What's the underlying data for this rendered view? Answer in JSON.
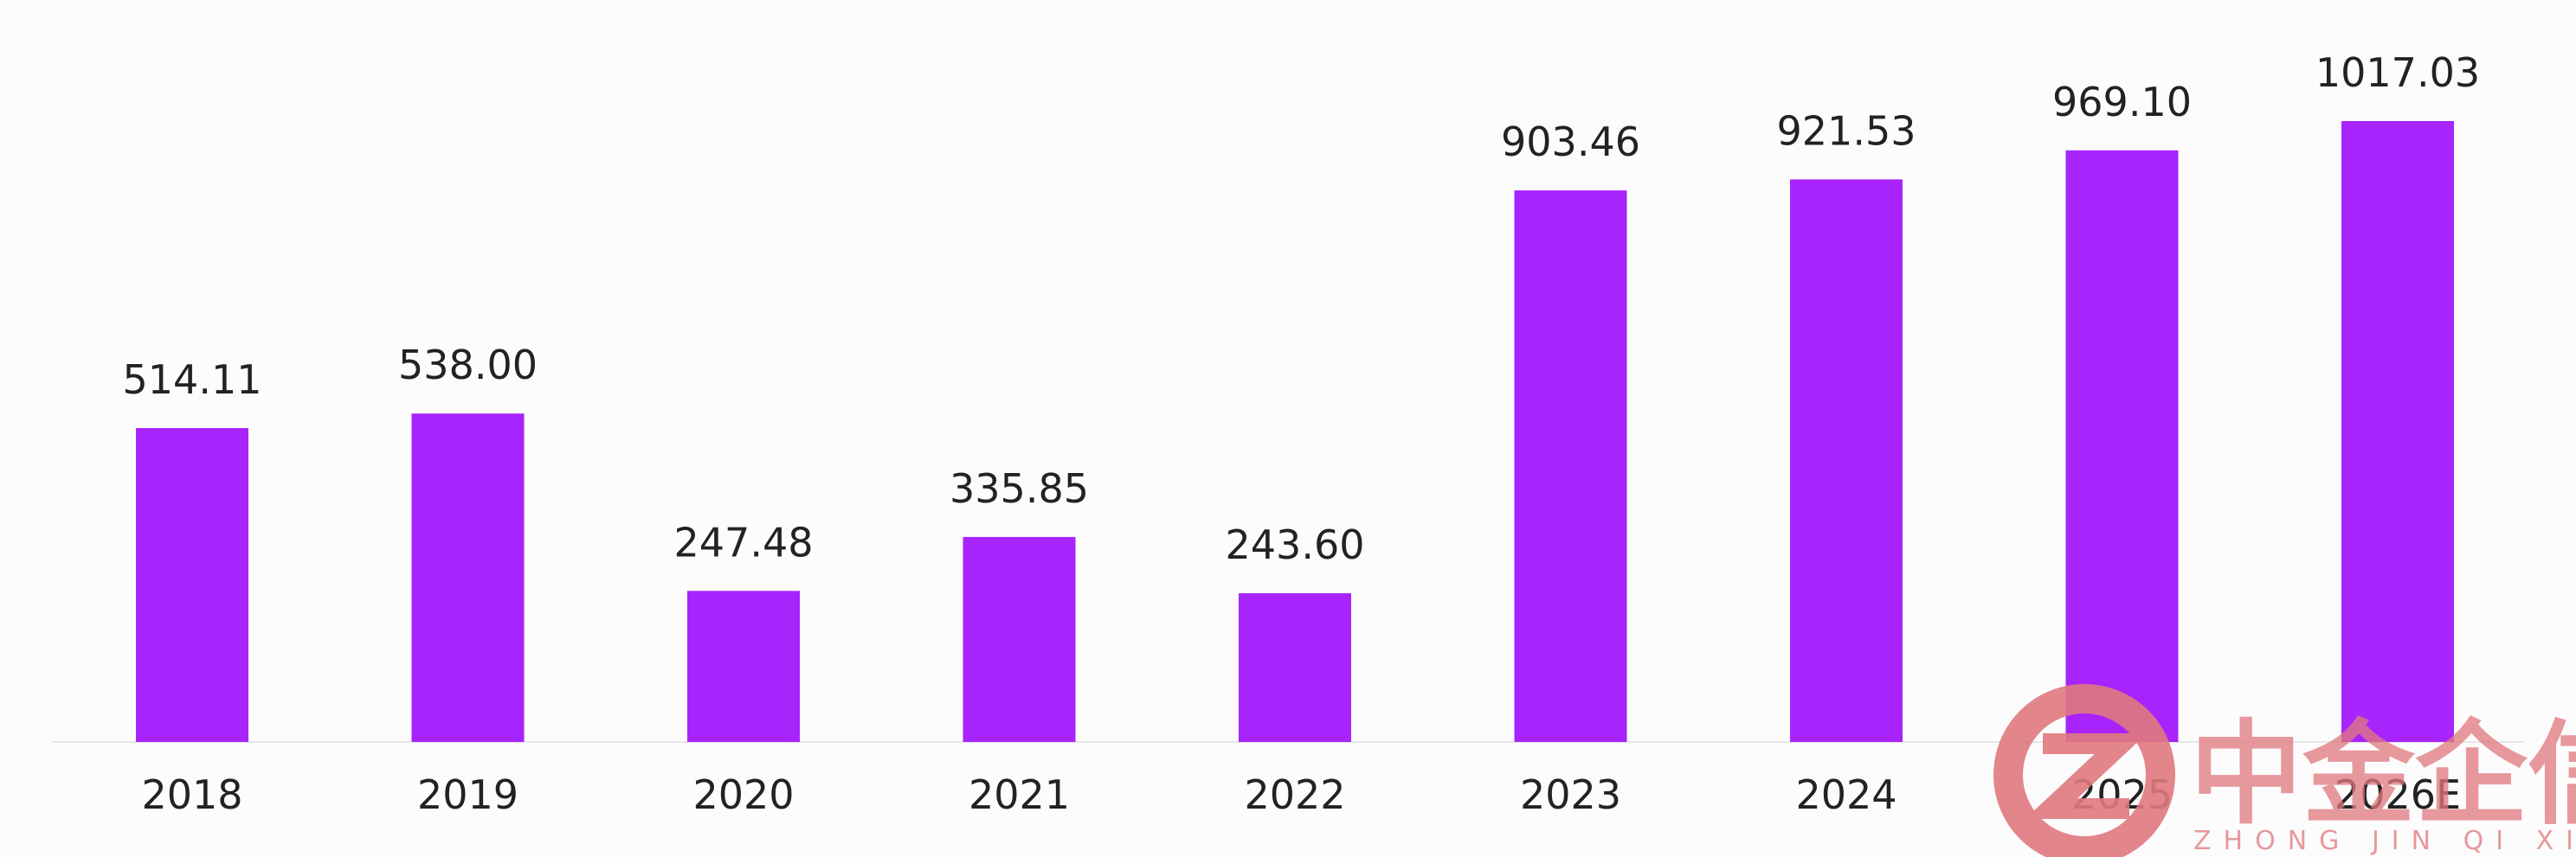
{
  "chart_data": {
    "type": "bar",
    "categories": [
      "2018",
      "2019",
      "2020",
      "2021",
      "2022",
      "2023",
      "2024",
      "2025",
      "2026E"
    ],
    "values": [
      514.11,
      538.0,
      247.48,
      335.85,
      243.6,
      903.46,
      921.53,
      969.1,
      1017.03
    ],
    "value_labels": [
      "514.11",
      "538.00",
      "247.48",
      "335.85",
      "243.60",
      "903.46",
      "921.53",
      "969.10",
      "1017.03"
    ],
    "title": "",
    "xlabel": "",
    "ylabel": "",
    "ylim": [
      0,
      1017.03
    ],
    "grid": false,
    "legend": "none",
    "bar_color": "#a724fc"
  },
  "watermark": {
    "brand_cn": "中金企信",
    "brand_en": "ZHONG JIN QI XIN",
    "color": "#e07a7f"
  }
}
